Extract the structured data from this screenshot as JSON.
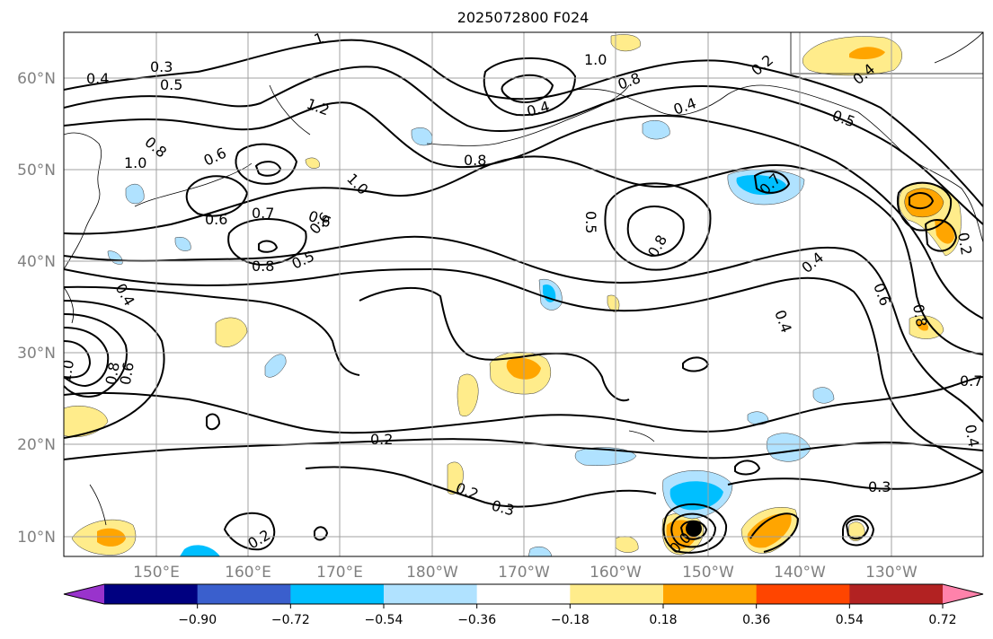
{
  "figure": {
    "title": "2025072800 F024"
  },
  "map": {
    "lat_labels": [
      "10°N",
      "20°N",
      "30°N",
      "40°N",
      "50°N",
      "60°N"
    ],
    "lon_labels": [
      "150°E",
      "160°E",
      "170°E",
      "180°W",
      "170°W",
      "160°W",
      "150°W",
      "140°W",
      "130°W"
    ],
    "lon_range": [
      140,
      250
    ],
    "lat_range": [
      8,
      65
    ],
    "gridlines": true
  },
  "contour_labels": [
    {
      "text": "0.4"
    },
    {
      "text": "0.3"
    },
    {
      "text": "0.5"
    },
    {
      "text": "1"
    },
    {
      "text": "1.2"
    },
    {
      "text": "0.8"
    },
    {
      "text": "0.6"
    },
    {
      "text": "1.0"
    },
    {
      "text": "1.0"
    },
    {
      "text": "0.6"
    },
    {
      "text": "0.7"
    },
    {
      "text": "0.6"
    },
    {
      "text": "0.6"
    },
    {
      "text": "0.8"
    },
    {
      "text": "0.5"
    },
    {
      "text": "0.4"
    },
    {
      "text": "0.4"
    },
    {
      "text": "1.0"
    },
    {
      "text": "0.8"
    },
    {
      "text": "0.4"
    },
    {
      "text": "0.8"
    },
    {
      "text": "0.5"
    },
    {
      "text": "0.8"
    },
    {
      "text": "0.7"
    },
    {
      "text": "0.4"
    },
    {
      "text": "0.2"
    },
    {
      "text": "0.5"
    },
    {
      "text": "0.4"
    },
    {
      "text": "0.6"
    },
    {
      "text": "0.8"
    },
    {
      "text": "0.2"
    },
    {
      "text": "0.4"
    },
    {
      "text": "0.7"
    },
    {
      "text": "0.4"
    },
    {
      "text": "1.0"
    },
    {
      "text": "0.8"
    },
    {
      "text": "0.6"
    },
    {
      "text": "0.2"
    },
    {
      "text": "0.2"
    },
    {
      "text": "0.3"
    },
    {
      "text": "0.3"
    },
    {
      "text": "0.2"
    },
    {
      "text": "0.0"
    }
  ],
  "colorbar": {
    "bounds": [
      -0.9,
      -0.72,
      -0.54,
      -0.36,
      -0.18,
      0.18,
      0.36,
      0.54,
      0.72,
      0.9
    ],
    "tick_labels": [
      "−0.90",
      "−0.72",
      "−0.54",
      "−0.36",
      "−0.18",
      "0.18",
      "0.36",
      "0.54",
      "0.72",
      "0.90"
    ],
    "colors": {
      "under": "#9933cc",
      "bins": [
        "#000080",
        "#3a5fcd",
        "#00bfff",
        "#b0e2ff",
        "#ffffff",
        "#ffec8b",
        "#ffa500",
        "#ff4500",
        "#b22222"
      ],
      "over": "#ff82ab"
    }
  },
  "colors": {
    "neg_light": "#b0e2ff",
    "neg_mid": "#00bfff",
    "pos_light": "#ffec8b",
    "pos_mid": "#ffa500",
    "gridline": "#a0a0a0"
  }
}
